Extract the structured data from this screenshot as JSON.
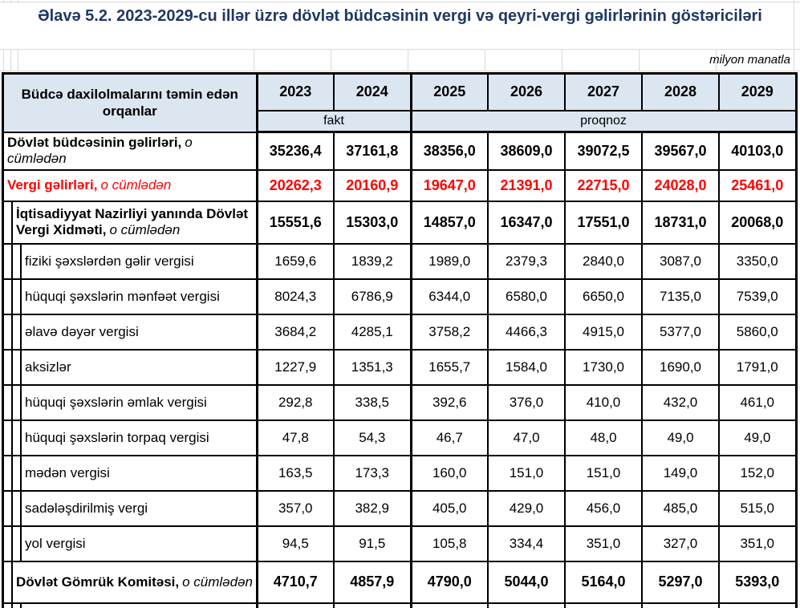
{
  "page": {
    "title": "Əlavə 5.2. 2023-2029-cu illər üzrə dövlət büdcəsinin vergi və qeyri-vergi gəlirlərinin göstəriciləri",
    "unit_label": "milyon manatla"
  },
  "colors": {
    "title_navy": "#1F3864",
    "header_fill": "#DCE6F1",
    "highlight_red": "#FF0000",
    "border": "#000000",
    "gridline": "#D9D9D9"
  },
  "table": {
    "header": {
      "organ_label": "Büdcə daxilolmalarını təmin edən orqanlar",
      "years": [
        "2023",
        "2024",
        "2025",
        "2026",
        "2027",
        "2028",
        "2029"
      ],
      "fact_label": "fakt",
      "forecast_label": "proqnoz"
    },
    "rows": [
      {
        "label": "Dövlət büdcəsinin gəlirləri,",
        "suffix": "o cümlədən",
        "indent": 0,
        "style": "bold",
        "values": [
          "35236,4",
          "37161,8",
          "38356,0",
          "38609,0",
          "39072,5",
          "39567,0",
          "40103,0"
        ]
      },
      {
        "label": "Vergi gəlirləri,",
        "suffix": "o cümlədən",
        "indent": 0,
        "style": "bold-red",
        "values": [
          "20262,3",
          "20160,9",
          "19647,0",
          "21391,0",
          "22715,0",
          "24028,0",
          "25461,0"
        ]
      },
      {
        "label": "İqtisadiyyat Nazirliyi yanında Dövlət Vergi Xidməti,",
        "suffix": "o cümlədən",
        "indent": 1,
        "style": "bold",
        "values": [
          "15551,6",
          "15303,0",
          "14857,0",
          "16347,0",
          "17551,0",
          "18731,0",
          "20068,0"
        ]
      },
      {
        "label": "fiziki şəxslərdən gəlir vergisi",
        "suffix": "",
        "indent": 2,
        "style": "normal",
        "values": [
          "1659,6",
          "1839,2",
          "1989,0",
          "2379,3",
          "2840,0",
          "3087,0",
          "3350,0"
        ]
      },
      {
        "label": "hüquqi şəxslərin mənfəət vergisi",
        "suffix": "",
        "indent": 2,
        "style": "normal",
        "values": [
          "8024,3",
          "6786,9",
          "6344,0",
          "6580,0",
          "6650,0",
          "7135,0",
          "7539,0"
        ]
      },
      {
        "label": "əlavə dəyər vergisi",
        "suffix": "",
        "indent": 2,
        "style": "normal",
        "values": [
          "3684,2",
          "4285,1",
          "3758,2",
          "4466,3",
          "4915,0",
          "5377,0",
          "5860,0"
        ]
      },
      {
        "label": "aksizlər",
        "suffix": "",
        "indent": 2,
        "style": "normal",
        "values": [
          "1227,9",
          "1351,3",
          "1655,7",
          "1584,0",
          "1730,0",
          "1690,0",
          "1791,0"
        ]
      },
      {
        "label": "hüquqi şəxslərin əmlak vergisi",
        "suffix": "",
        "indent": 2,
        "style": "normal",
        "values": [
          "292,8",
          "338,5",
          "392,6",
          "376,0",
          "410,0",
          "432,0",
          "461,0"
        ]
      },
      {
        "label": "hüquqi şəxslərin torpaq vergisi",
        "suffix": "",
        "indent": 2,
        "style": "normal",
        "values": [
          "47,8",
          "54,3",
          "46,7",
          "47,0",
          "48,0",
          "49,0",
          "49,0"
        ]
      },
      {
        "label": "mədən vergisi",
        "suffix": "",
        "indent": 2,
        "style": "normal",
        "values": [
          "163,5",
          "173,3",
          "160,0",
          "151,0",
          "151,0",
          "149,0",
          "152,0"
        ]
      },
      {
        "label": "sadələşdirilmiş  vergi",
        "suffix": "",
        "indent": 2,
        "style": "normal",
        "values": [
          "357,0",
          "382,9",
          "405,0",
          "429,0",
          "456,0",
          "485,0",
          "515,0"
        ]
      },
      {
        "label": "yol vergisi",
        "suffix": "",
        "indent": 2,
        "style": "normal",
        "values": [
          "94,5",
          "91,5",
          "105,8",
          "334,4",
          "351,0",
          "327,0",
          "351,0"
        ]
      },
      {
        "label": "Dövlət Gömrük Komitəsi,",
        "suffix": "o cümlədən",
        "indent": 1,
        "style": "bold",
        "values": [
          "4710,7",
          "4857,9",
          "4790,0",
          "5044,0",
          "5164,0",
          "5297,0",
          "5393,0"
        ]
      }
    ]
  }
}
